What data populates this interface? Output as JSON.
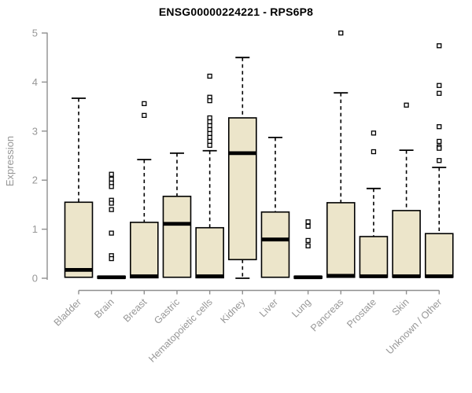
{
  "chart_data": {
    "type": "boxplot",
    "title": "ENSG00000224221 - RPS6P8",
    "ylabel": "Expression",
    "xlabel": "",
    "ylim": [
      0,
      5
    ],
    "yticks": [
      0,
      1,
      2,
      3,
      4,
      5
    ],
    "grid": false,
    "legend": "none",
    "colors": {
      "box_fill": "#ece5ca",
      "box_border": "#000000",
      "median": "#000000",
      "whisker": "#000000",
      "axis": "#8f8f8f",
      "tick_label": "#979797",
      "title": "#000000"
    },
    "categories": [
      "Bladder",
      "Brain",
      "Breast",
      "Gastric",
      "Hematopoietic cells",
      "Kidney",
      "Liver",
      "Lung",
      "Pancreas",
      "Prostate",
      "Skin",
      "Unknown / Other"
    ],
    "series": [
      {
        "name": "Bladder",
        "min": 0,
        "q1": 0.02,
        "median": 0.17,
        "q3": 1.55,
        "max": 3.67,
        "outliers": []
      },
      {
        "name": "Brain",
        "min": 0,
        "q1": 0.0,
        "median": 0.02,
        "q3": 0.04,
        "max": 0.04,
        "outliers": [
          2.12,
          2.02,
          1.94,
          1.87,
          1.59,
          1.53,
          1.4,
          0.92,
          0.46,
          0.4
        ]
      },
      {
        "name": "Breast",
        "min": 0,
        "q1": 0.01,
        "median": 0.04,
        "q3": 1.14,
        "max": 2.42,
        "outliers": [
          3.56,
          3.32
        ]
      },
      {
        "name": "Gastric",
        "min": 0,
        "q1": 0.02,
        "median": 1.11,
        "q3": 1.67,
        "max": 2.55,
        "outliers": []
      },
      {
        "name": "Hematopoietic cells",
        "min": 0,
        "q1": 0.01,
        "median": 0.04,
        "q3": 1.03,
        "max": 2.6,
        "outliers": [
          4.12,
          3.69,
          3.62,
          3.27,
          3.19,
          3.11,
          3.03,
          2.95,
          2.87,
          2.79,
          2.71
        ]
      },
      {
        "name": "Kidney",
        "min": 0,
        "q1": 0.38,
        "median": 2.55,
        "q3": 3.27,
        "max": 4.5,
        "outliers": []
      },
      {
        "name": "Liver",
        "min": 0,
        "q1": 0.02,
        "median": 0.79,
        "q3": 1.35,
        "max": 2.87,
        "outliers": []
      },
      {
        "name": "Lung",
        "min": 0,
        "q1": 0.0,
        "median": 0.02,
        "q3": 0.04,
        "max": 0.04,
        "outliers": [
          1.15,
          1.06,
          0.77,
          0.66
        ]
      },
      {
        "name": "Pancreas",
        "min": 0,
        "q1": 0.02,
        "median": 0.05,
        "q3": 1.54,
        "max": 3.78,
        "outliers": [
          5.0
        ]
      },
      {
        "name": "Prostate",
        "min": 0,
        "q1": 0.02,
        "median": 0.04,
        "q3": 0.85,
        "max": 1.83,
        "outliers": [
          2.96,
          2.58
        ]
      },
      {
        "name": "Skin",
        "min": 0,
        "q1": 0.02,
        "median": 0.04,
        "q3": 1.38,
        "max": 2.61,
        "outliers": [
          3.53
        ]
      },
      {
        "name": "Unknown / Other",
        "min": 0,
        "q1": 0.02,
        "median": 0.04,
        "q3": 0.91,
        "max": 2.26,
        "outliers": [
          4.74,
          3.93,
          3.77,
          3.09,
          2.79,
          2.68,
          2.65,
          2.4
        ]
      }
    ]
  }
}
